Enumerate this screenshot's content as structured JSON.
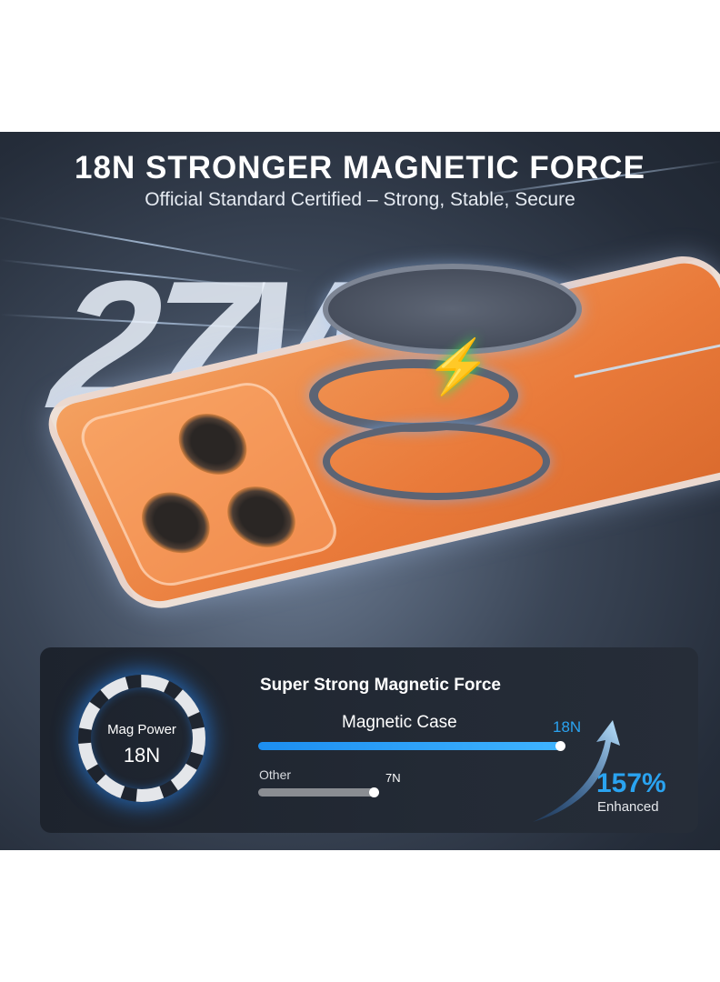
{
  "header": {
    "title": "18N STRONGER MAGNETIC FORCE",
    "subtitle": "Official Standard Certified – Strong, Stable, Secure"
  },
  "hero": {
    "wattage": "27W",
    "bolt_icon": "lightning-bolt-icon",
    "bolt_color": "#3fe44f",
    "case_color": "#e97a3a"
  },
  "panel": {
    "title": "Super Strong Magnetic Force",
    "dial": {
      "label": "Mag Power",
      "value": "18N"
    },
    "bars": [
      {
        "label": "Magnetic Case",
        "value_label": "18N",
        "value": 18,
        "color": "#2aa3f0"
      },
      {
        "label": "Other",
        "value_label": "7N",
        "value": 7,
        "color": "#8a8d92"
      }
    ],
    "max": 18,
    "improvement": {
      "value": "157%",
      "label": "Enhanced"
    }
  }
}
